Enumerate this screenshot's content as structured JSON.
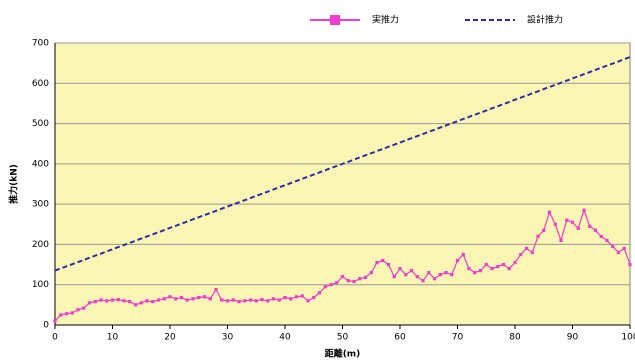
{
  "chart_data": {
    "type": "line",
    "x_label": "距離(m)",
    "y_label": "推力(kN)",
    "xlim": [
      0,
      100
    ],
    "xticks": [
      0,
      10,
      20,
      30,
      40,
      50,
      60,
      70,
      80,
      90,
      100
    ],
    "ylim": [
      0,
      700
    ],
    "yticks": [
      0,
      100,
      200,
      300,
      400,
      500,
      600,
      700
    ],
    "grid": true,
    "legend": "top",
    "plot_background": "#fbf6b4",
    "series": [
      {
        "name": "実推力",
        "color": "#f03ccf",
        "marker": "square",
        "dash": false,
        "x": [
          0,
          1,
          2,
          3,
          4,
          5,
          6,
          7,
          8,
          9,
          10,
          11,
          12,
          13,
          14,
          15,
          16,
          17,
          18,
          19,
          20,
          21,
          22,
          23,
          24,
          25,
          26,
          27,
          28,
          29,
          30,
          31,
          32,
          33,
          34,
          35,
          36,
          37,
          38,
          39,
          40,
          41,
          42,
          43,
          44,
          45,
          46,
          47,
          48,
          49,
          50,
          51,
          52,
          53,
          54,
          55,
          56,
          57,
          58,
          59,
          60,
          61,
          62,
          63,
          64,
          65,
          66,
          67,
          68,
          69,
          70,
          71,
          72,
          73,
          74,
          75,
          76,
          77,
          78,
          79,
          80,
          81,
          82,
          83,
          84,
          85,
          86,
          87,
          88,
          89,
          90,
          91,
          92,
          93,
          94,
          95,
          96,
          97,
          98,
          99,
          100
        ],
        "values": [
          10,
          25,
          28,
          30,
          38,
          42,
          55,
          58,
          62,
          60,
          62,
          63,
          60,
          58,
          50,
          55,
          60,
          58,
          62,
          65,
          70,
          65,
          68,
          62,
          65,
          68,
          70,
          65,
          88,
          62,
          60,
          62,
          58,
          60,
          62,
          60,
          63,
          60,
          65,
          62,
          68,
          65,
          70,
          72,
          60,
          68,
          80,
          95,
          100,
          105,
          120,
          110,
          108,
          115,
          118,
          130,
          155,
          160,
          150,
          120,
          140,
          125,
          135,
          120,
          110,
          130,
          115,
          125,
          130,
          125,
          160,
          175,
          140,
          130,
          135,
          150,
          140,
          145,
          150,
          140,
          155,
          175,
          190,
          180,
          220,
          235,
          280,
          250,
          210,
          260,
          255,
          240,
          285,
          245,
          235,
          220,
          210,
          195,
          180,
          190,
          150
        ]
      },
      {
        "name": "設計推力",
        "color": "#2e2ea8",
        "marker": "none",
        "dash": true,
        "x": [
          0,
          100
        ],
        "values": [
          135,
          665
        ]
      }
    ]
  }
}
